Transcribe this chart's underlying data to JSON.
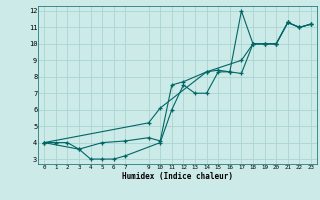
{
  "xlabel": "Humidex (Indice chaleur)",
  "bg_color": "#cceae7",
  "grid_color": "#aad4d0",
  "line_color": "#006666",
  "xlim": [
    -0.5,
    23.5
  ],
  "ylim": [
    2.7,
    12.3
  ],
  "xticks": [
    0,
    1,
    2,
    3,
    4,
    5,
    6,
    7,
    9,
    10,
    11,
    12,
    13,
    14,
    15,
    16,
    17,
    18,
    19,
    20,
    21,
    22,
    23
  ],
  "yticks": [
    3,
    4,
    5,
    6,
    7,
    8,
    9,
    10,
    11,
    12
  ],
  "line1_x": [
    0,
    1,
    2,
    3,
    4,
    5,
    6,
    7,
    10,
    11,
    12,
    13,
    14,
    15,
    16,
    17,
    18,
    19,
    20,
    21,
    22,
    23
  ],
  "line1_y": [
    4,
    4,
    4,
    3.6,
    3,
    3,
    3,
    3.2,
    4,
    6,
    7.5,
    7,
    7,
    8.3,
    8.3,
    12,
    10,
    10,
    10,
    11.3,
    11,
    11.2
  ],
  "line2_x": [
    0,
    3,
    5,
    7,
    9,
    10,
    11,
    12,
    14,
    15,
    16,
    17,
    18,
    19,
    20,
    21,
    22,
    23
  ],
  "line2_y": [
    4,
    3.6,
    4,
    4.1,
    4.3,
    4.1,
    7.5,
    7.7,
    8.3,
    8.4,
    8.3,
    8.2,
    10,
    10,
    10,
    11.3,
    11,
    11.2
  ],
  "line3_x": [
    0,
    9,
    10,
    14,
    17,
    18,
    19,
    20,
    21,
    22,
    23
  ],
  "line3_y": [
    4,
    5.2,
    6.1,
    8.3,
    9,
    10,
    10,
    10,
    11.3,
    11,
    11.2
  ]
}
